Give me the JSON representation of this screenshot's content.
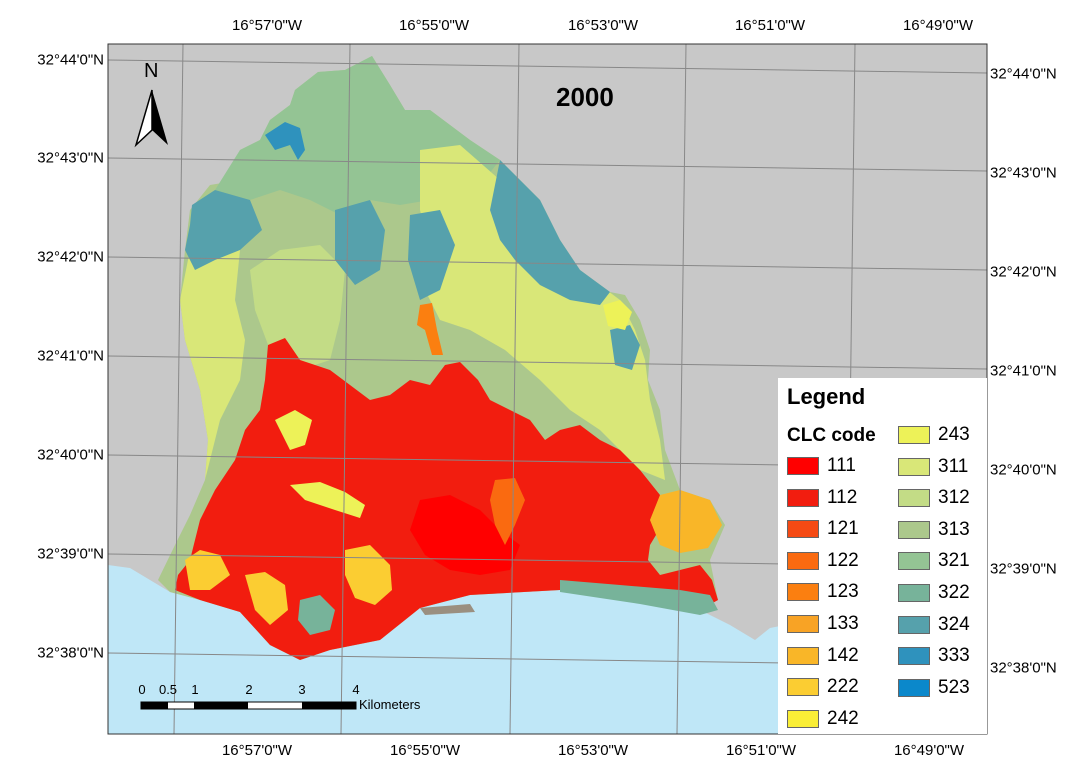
{
  "map": {
    "year": "2000",
    "north_label": "N",
    "colors": {
      "sea": "#bfe7f7",
      "land_outside": "#c8c8c8",
      "frame_bg": "#c8c8c8"
    }
  },
  "top_longitudes": [
    "16°57'0\"W",
    "16°55'0\"W",
    "16°53'0\"W",
    "16°51'0\"W",
    "16°49'0\"W"
  ],
  "bottom_longitudes": [
    "16°57'0\"W",
    "16°55'0\"W",
    "16°53'0\"W",
    "16°51'0\"W",
    "16°49'0\"W"
  ],
  "left_latitudes": [
    "32°44'0\"N",
    "32°43'0\"N",
    "32°42'0\"N",
    "32°41'0\"N",
    "32°40'0\"N",
    "32°39'0\"N",
    "32°38'0\"N"
  ],
  "right_latitudes": [
    "32°44'0\"N",
    "32°43'0\"N",
    "32°42'0\"N",
    "32°41'0\"N",
    "32°40'0\"N",
    "32°39'0\"N",
    "32°38'0\"N"
  ],
  "legend": {
    "title": "Legend",
    "subtitle": "CLC code",
    "items": [
      {
        "code": "111",
        "color": "#ff0000"
      },
      {
        "code": "112",
        "color": "#f21d0f"
      },
      {
        "code": "121",
        "color": "#f54a14"
      },
      {
        "code": "122",
        "color": "#fa6a10"
      },
      {
        "code": "123",
        "color": "#fb7f10"
      },
      {
        "code": "133",
        "color": "#f8a325"
      },
      {
        "code": "142",
        "color": "#f9b628"
      },
      {
        "code": "222",
        "color": "#fbcd32"
      },
      {
        "code": "242",
        "color": "#faee36"
      },
      {
        "code": "243",
        "color": "#edf258"
      },
      {
        "code": "311",
        "color": "#d9e778"
      },
      {
        "code": "312",
        "color": "#c3dc86"
      },
      {
        "code": "313",
        "color": "#acc88c"
      },
      {
        "code": "321",
        "color": "#94c494"
      },
      {
        "code": "322",
        "color": "#77b39a"
      },
      {
        "code": "324",
        "color": "#56a1ac"
      },
      {
        "code": "333",
        "color": "#2f92bd"
      },
      {
        "code": "523",
        "color": "#0b88cb"
      }
    ]
  },
  "scalebar": {
    "labels": [
      "0",
      "0.5",
      "1",
      "2",
      "3",
      "4"
    ],
    "unit": "Kilometers"
  }
}
